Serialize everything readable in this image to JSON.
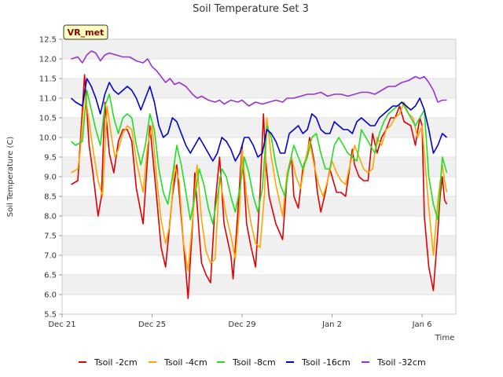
{
  "chart_data": {
    "type": "line",
    "title": "Soil Temperature Set 3",
    "xlabel": "Time",
    "ylabel": "Soil Temperature (C)",
    "site_label": "VR_met",
    "xlim": [
      0,
      17.5
    ],
    "ylim": [
      5.5,
      12.5
    ],
    "yticks": [
      5.5,
      6.0,
      6.5,
      7.0,
      7.5,
      8.0,
      8.5,
      9.0,
      9.5,
      10.0,
      10.5,
      11.0,
      11.5,
      12.0,
      12.5
    ],
    "xticks": [
      {
        "value": 0,
        "label": "Dec 21"
      },
      {
        "value": 4,
        "label": "Dec 25"
      },
      {
        "value": 8,
        "label": "Dec 29"
      },
      {
        "value": 12,
        "label": "Jan 2"
      },
      {
        "value": 16,
        "label": "Jan 6"
      }
    ],
    "grid": "horizontal bands",
    "legend_position": "bottom",
    "series": [
      {
        "name": "Tsoil -2cm",
        "color": "#e00000",
        "x": [
          0.4,
          0.7,
          0.8,
          1.0,
          1.1,
          1.2,
          1.35,
          1.6,
          1.75,
          1.9,
          2.1,
          2.3,
          2.5,
          2.7,
          2.9,
          3.1,
          3.3,
          3.6,
          3.8,
          3.9,
          4.2,
          4.4,
          4.6,
          4.9,
          5.1,
          5.2,
          5.5,
          5.6,
          5.8,
          5.9,
          6.1,
          6.2,
          6.4,
          6.6,
          6.8,
          7.0,
          7.2,
          7.5,
          7.6,
          7.8,
          8.0,
          8.2,
          8.4,
          8.6,
          8.8,
          8.95,
          9.05,
          9.2,
          9.5,
          9.8,
          10.0,
          10.2,
          10.3,
          10.5,
          10.7,
          10.9,
          11.0,
          11.2,
          11.35,
          11.5,
          11.7,
          11.9,
          12.1,
          12.2,
          12.4,
          12.6,
          12.9,
          13.0,
          13.2,
          13.4,
          13.6,
          13.8,
          14.0,
          14.2,
          14.4,
          14.6,
          14.8,
          15.0,
          15.2,
          15.5,
          15.7,
          15.9,
          16.0,
          16.1,
          16.3,
          16.5,
          16.7,
          16.8,
          16.9,
          17.0,
          17.1
        ],
        "values": [
          8.8,
          8.9,
          9.8,
          11.6,
          10.7,
          9.8,
          9.2,
          8.0,
          8.5,
          10.9,
          9.6,
          9.1,
          9.9,
          10.2,
          10.2,
          9.9,
          8.7,
          7.8,
          9.5,
          10.3,
          8.5,
          7.2,
          6.7,
          8.5,
          9.3,
          8.6,
          6.6,
          5.9,
          7.8,
          9.1,
          7.5,
          6.8,
          6.5,
          6.3,
          8.3,
          9.5,
          7.8,
          7.0,
          6.4,
          8.0,
          9.8,
          7.8,
          7.2,
          6.7,
          8.6,
          10.6,
          9.4,
          8.5,
          7.8,
          7.4,
          9.0,
          9.5,
          8.5,
          8.2,
          9.2,
          9.6,
          10.0,
          9.4,
          8.6,
          8.1,
          8.6,
          9.2,
          8.8,
          8.6,
          8.6,
          8.5,
          9.7,
          9.3,
          9.0,
          8.9,
          8.9,
          10.1,
          9.6,
          10.0,
          10.2,
          10.5,
          10.5,
          10.8,
          10.4,
          10.3,
          9.8,
          10.5,
          10.3,
          8.0,
          6.7,
          6.1,
          7.6,
          8.5,
          9.0,
          8.4,
          8.3
        ]
      },
      {
        "name": "Tsoil -4cm",
        "color": "#ffa500",
        "x": [
          0.4,
          0.7,
          0.8,
          1.0,
          1.1,
          1.25,
          1.4,
          1.6,
          1.8,
          2.0,
          2.2,
          2.35,
          2.5,
          2.7,
          2.9,
          3.1,
          3.3,
          3.6,
          3.8,
          4.0,
          4.2,
          4.4,
          4.6,
          4.8,
          5.0,
          5.2,
          5.4,
          5.6,
          5.8,
          6.0,
          6.2,
          6.4,
          6.6,
          6.8,
          7.0,
          7.3,
          7.5,
          7.7,
          7.9,
          8.0,
          8.2,
          8.4,
          8.6,
          8.8,
          9.0,
          9.1,
          9.3,
          9.5,
          9.8,
          10.0,
          10.2,
          10.4,
          10.6,
          10.8,
          11.0,
          11.2,
          11.4,
          11.6,
          11.8,
          12.0,
          12.2,
          12.4,
          12.6,
          12.8,
          13.0,
          13.2,
          13.4,
          13.6,
          13.8,
          14.0,
          14.2,
          14.4,
          14.6,
          14.8,
          15.0,
          15.2,
          15.4,
          15.6,
          15.8,
          16.0,
          16.1,
          16.3,
          16.5,
          16.7,
          16.9,
          17.0,
          17.1
        ],
        "values": [
          9.1,
          9.2,
          9.6,
          11.1,
          10.8,
          10.2,
          9.6,
          8.9,
          8.5,
          10.8,
          10.0,
          9.5,
          9.7,
          10.1,
          10.3,
          10.2,
          9.4,
          8.6,
          9.8,
          10.3,
          9.0,
          7.9,
          7.3,
          7.8,
          9.3,
          8.9,
          7.3,
          6.6,
          7.9,
          9.3,
          7.9,
          7.1,
          6.8,
          6.9,
          9.0,
          8.0,
          7.5,
          6.9,
          8.3,
          9.7,
          8.5,
          7.8,
          7.3,
          7.2,
          8.6,
          10.5,
          9.5,
          8.8,
          8.0,
          9.1,
          9.5,
          9.0,
          8.7,
          9.4,
          9.9,
          9.3,
          8.8,
          8.5,
          8.9,
          9.4,
          9.1,
          8.9,
          8.8,
          9.3,
          9.8,
          9.5,
          9.2,
          9.1,
          9.2,
          10.0,
          9.8,
          10.2,
          10.3,
          10.5,
          10.6,
          10.9,
          10.6,
          10.5,
          10.0,
          10.3,
          9.6,
          8.2,
          7.0,
          8.4,
          9.3,
          8.9,
          8.6
        ]
      },
      {
        "name": "Tsoil -8cm",
        "color": "#22dd22",
        "x": [
          0.4,
          0.6,
          0.9,
          1.1,
          1.3,
          1.5,
          1.7,
          1.9,
          2.1,
          2.3,
          2.5,
          2.7,
          2.9,
          3.1,
          3.3,
          3.5,
          3.7,
          3.9,
          4.1,
          4.3,
          4.5,
          4.7,
          4.9,
          5.1,
          5.3,
          5.5,
          5.7,
          5.9,
          6.1,
          6.3,
          6.5,
          6.7,
          6.9,
          7.1,
          7.3,
          7.5,
          7.7,
          7.9,
          8.1,
          8.3,
          8.5,
          8.7,
          8.9,
          9.1,
          9.3,
          9.5,
          9.7,
          9.9,
          10.1,
          10.3,
          10.5,
          10.7,
          10.9,
          11.1,
          11.3,
          11.5,
          11.7,
          11.9,
          12.1,
          12.3,
          12.5,
          12.7,
          12.9,
          13.1,
          13.3,
          13.5,
          13.7,
          13.9,
          14.1,
          14.3,
          14.5,
          14.7,
          14.9,
          15.1,
          15.3,
          15.5,
          15.7,
          15.9,
          16.1,
          16.3,
          16.5,
          16.7,
          16.9,
          17.1
        ],
        "values": [
          9.9,
          9.8,
          9.9,
          11.2,
          10.7,
          10.2,
          9.8,
          10.8,
          11.1,
          10.5,
          10.1,
          10.5,
          10.6,
          10.5,
          9.8,
          9.3,
          9.8,
          10.6,
          10.2,
          9.2,
          8.6,
          8.3,
          9.0,
          9.8,
          9.3,
          8.6,
          7.9,
          8.5,
          9.2,
          8.8,
          8.2,
          7.8,
          8.5,
          9.2,
          9.0,
          8.5,
          8.1,
          8.7,
          9.5,
          9.1,
          8.5,
          8.1,
          8.7,
          10.3,
          10.0,
          9.3,
          8.8,
          8.5,
          9.3,
          9.8,
          9.5,
          9.2,
          9.5,
          10.0,
          10.1,
          9.6,
          9.2,
          9.2,
          9.8,
          10.0,
          9.8,
          9.6,
          9.5,
          9.4,
          10.2,
          10.0,
          9.8,
          9.6,
          10.1,
          10.4,
          10.6,
          10.7,
          10.8,
          10.9,
          10.7,
          10.5,
          10.3,
          10.5,
          10.7,
          9.0,
          8.3,
          7.9,
          9.5,
          9.1
        ]
      },
      {
        "name": "Tsoil -16cm",
        "color": "#0000cc",
        "x": [
          0.4,
          0.6,
          0.9,
          1.1,
          1.3,
          1.5,
          1.7,
          1.9,
          2.1,
          2.3,
          2.5,
          2.7,
          2.9,
          3.1,
          3.3,
          3.5,
          3.7,
          3.9,
          4.1,
          4.3,
          4.5,
          4.7,
          4.9,
          5.1,
          5.3,
          5.5,
          5.7,
          5.9,
          6.1,
          6.3,
          6.5,
          6.7,
          6.9,
          7.1,
          7.3,
          7.5,
          7.7,
          7.9,
          8.1,
          8.3,
          8.5,
          8.7,
          8.9,
          9.1,
          9.3,
          9.5,
          9.7,
          9.9,
          10.1,
          10.3,
          10.5,
          10.7,
          10.9,
          11.1,
          11.3,
          11.5,
          11.7,
          11.9,
          12.1,
          12.3,
          12.5,
          12.7,
          12.9,
          13.1,
          13.3,
          13.5,
          13.7,
          13.9,
          14.1,
          14.3,
          14.5,
          14.7,
          14.9,
          15.1,
          15.3,
          15.5,
          15.7,
          15.9,
          16.1,
          16.3,
          16.5,
          16.7,
          16.9,
          17.1
        ],
        "values": [
          11.0,
          10.9,
          10.8,
          11.5,
          11.3,
          11.0,
          10.6,
          11.1,
          11.4,
          11.2,
          11.1,
          11.2,
          11.3,
          11.2,
          11.0,
          10.7,
          11.0,
          11.3,
          10.9,
          10.3,
          10.0,
          10.1,
          10.5,
          10.4,
          10.1,
          9.8,
          9.6,
          9.8,
          10.0,
          9.8,
          9.6,
          9.4,
          9.6,
          10.0,
          9.9,
          9.7,
          9.4,
          9.6,
          10.0,
          10.0,
          9.8,
          9.5,
          9.6,
          10.2,
          10.1,
          9.9,
          9.6,
          9.6,
          10.1,
          10.2,
          10.3,
          10.1,
          10.2,
          10.6,
          10.5,
          10.2,
          10.1,
          10.1,
          10.4,
          10.3,
          10.2,
          10.2,
          10.1,
          10.4,
          10.5,
          10.4,
          10.3,
          10.3,
          10.5,
          10.6,
          10.7,
          10.8,
          10.8,
          10.9,
          10.8,
          10.7,
          10.8,
          11.0,
          10.7,
          10.2,
          9.6,
          9.8,
          10.1,
          10.0
        ]
      },
      {
        "name": "Tsoil -32cm",
        "color": "#9933cc",
        "x": [
          0.4,
          0.7,
          0.9,
          1.1,
          1.3,
          1.5,
          1.7,
          1.9,
          2.1,
          2.4,
          2.7,
          3.0,
          3.3,
          3.6,
          3.8,
          4.0,
          4.2,
          4.4,
          4.6,
          4.8,
          5.0,
          5.2,
          5.5,
          5.8,
          6.0,
          6.2,
          6.5,
          6.8,
          7.0,
          7.2,
          7.5,
          7.8,
          8.0,
          8.3,
          8.6,
          8.9,
          9.2,
          9.5,
          9.8,
          10.0,
          10.3,
          10.6,
          10.9,
          11.2,
          11.5,
          11.8,
          12.1,
          12.4,
          12.7,
          13.0,
          13.3,
          13.6,
          13.9,
          14.2,
          14.5,
          14.8,
          15.1,
          15.4,
          15.7,
          15.9,
          16.1,
          16.3,
          16.5,
          16.7,
          16.9,
          17.1
        ],
        "values": [
          12.0,
          12.05,
          11.9,
          12.1,
          12.2,
          12.15,
          11.95,
          12.1,
          12.15,
          12.1,
          12.05,
          12.05,
          11.95,
          11.9,
          12.0,
          11.8,
          11.7,
          11.55,
          11.4,
          11.5,
          11.35,
          11.4,
          11.3,
          11.1,
          11.0,
          11.05,
          10.95,
          10.9,
          10.95,
          10.85,
          10.95,
          10.9,
          10.95,
          10.8,
          10.9,
          10.85,
          10.9,
          10.95,
          10.9,
          11.0,
          11.0,
          11.05,
          11.1,
          11.1,
          11.15,
          11.05,
          11.1,
          11.1,
          11.05,
          11.1,
          11.15,
          11.15,
          11.1,
          11.2,
          11.3,
          11.3,
          11.4,
          11.45,
          11.55,
          11.5,
          11.55,
          11.4,
          11.2,
          10.9,
          10.95,
          10.95
        ]
      }
    ]
  }
}
